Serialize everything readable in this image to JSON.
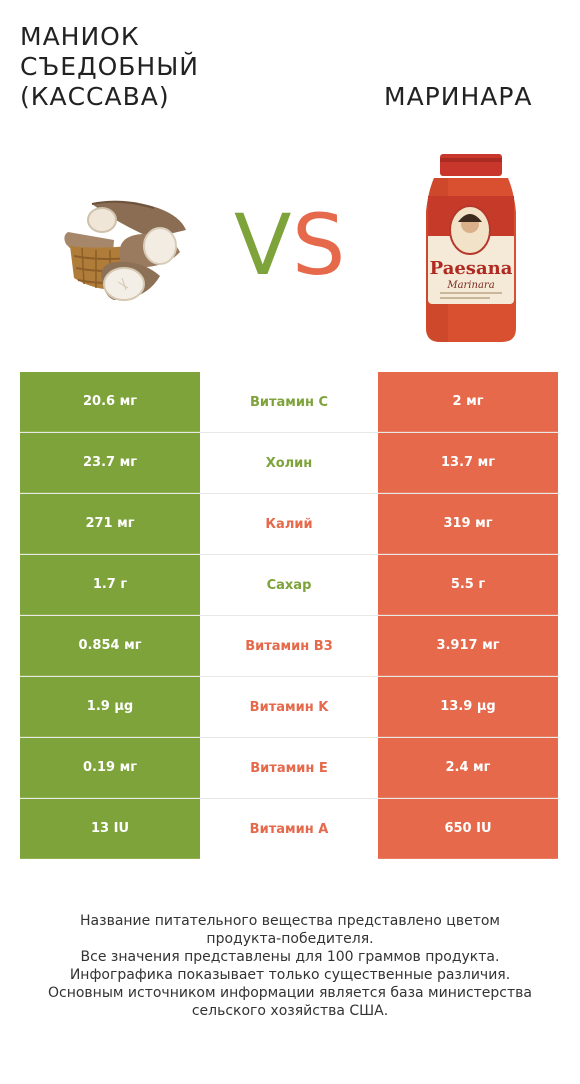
{
  "left_product": {
    "title": "МАНИОК\nСЪЕДОБНЫЙ\n(КАССАВА)",
    "color": "#7da33a"
  },
  "right_product": {
    "title": "МАРИНАРА",
    "color": "#e5694a"
  },
  "vs": {
    "v": "V",
    "s": "S"
  },
  "jar_label": {
    "brand": "Paesana",
    "sub": "Marinara"
  },
  "rows": [
    {
      "left": "20.6 мг",
      "nutrient": "Витамин C",
      "right": "2 мг",
      "winner": "left"
    },
    {
      "left": "23.7 мг",
      "nutrient": "Холин",
      "right": "13.7 мг",
      "winner": "left"
    },
    {
      "left": "271 мг",
      "nutrient": "Калий",
      "right": "319 мг",
      "winner": "right"
    },
    {
      "left": "1.7 г",
      "nutrient": "Сахар",
      "right": "5.5 г",
      "winner": "left"
    },
    {
      "left": "0.854 мг",
      "nutrient": "Витамин B3",
      "right": "3.917 мг",
      "winner": "right"
    },
    {
      "left": "1.9 µg",
      "nutrient": "Витамин K",
      "right": "13.9 µg",
      "winner": "right"
    },
    {
      "left": "0.19 мг",
      "nutrient": "Витамин E",
      "right": "2.4 мг",
      "winner": "right"
    },
    {
      "left": "13 IU",
      "nutrient": "Витамин A",
      "right": "650 IU",
      "winner": "right"
    }
  ],
  "footer": {
    "lines": [
      "Название питательного вещества представлено цветом",
      "продукта-победителя.",
      "Все значения представлены для 100 граммов продукта.",
      "Инфографика показывает только существенные различия.",
      "Основным источником информации является база министерства",
      "сельского хозяйства США."
    ]
  }
}
